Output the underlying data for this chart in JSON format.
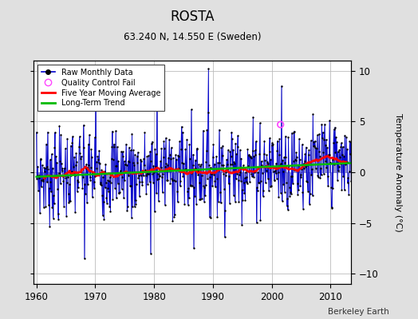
{
  "title": "ROSTA",
  "subtitle": "63.240 N, 14.550 E (Sweden)",
  "ylabel": "Temperature Anomaly (°C)",
  "credit": "Berkeley Earth",
  "ylim": [
    -11,
    11
  ],
  "xlim": [
    1959.5,
    2013.5
  ],
  "xticks": [
    1960,
    1970,
    1980,
    1990,
    2000,
    2010
  ],
  "yticks": [
    -10,
    -5,
    0,
    5,
    10
  ],
  "bg_color": "#e0e0e0",
  "plot_bg_color": "#ffffff",
  "grid_color": "#bbbbbb",
  "bar_color": "#8888cc",
  "line_color": "#0000cc",
  "dot_color": "#000000",
  "ma_color": "#ff0000",
  "trend_color": "#00bb00",
  "qc_color": "#ff44ff",
  "seed": 42,
  "years_start": 1960,
  "years_end": 2013
}
